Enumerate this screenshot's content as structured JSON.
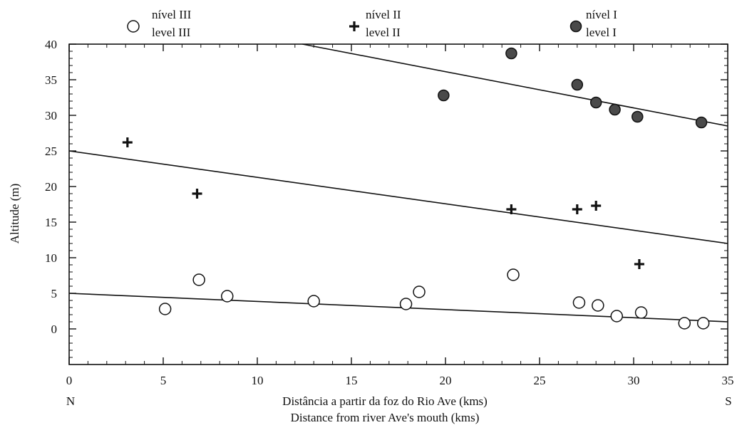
{
  "chart_data": {
    "type": "scatter",
    "title": "",
    "xlabel": "Distância a partir da foz do Rio Ave (kms)",
    "xlabel_secondary": "Distance from river Ave's mouth (kms)",
    "ylabel": "Altitude (m)",
    "xlim": [
      0,
      35
    ],
    "ylim": [
      -5,
      40
    ],
    "x_ticks": [
      0,
      5,
      10,
      15,
      20,
      25,
      30,
      35
    ],
    "y_ticks": [
      0,
      5,
      10,
      15,
      20,
      25,
      30,
      35,
      40
    ],
    "x_tick_labels": [
      "0",
      "5",
      "10",
      "15",
      "20",
      "25",
      "30",
      "35"
    ],
    "y_tick_labels": [
      "0",
      "5",
      "10",
      "15",
      "20",
      "25",
      "30",
      "35",
      "40"
    ],
    "direction_labels": {
      "left": "N",
      "right": "S"
    },
    "grid": false,
    "legend_position": "top",
    "series": [
      {
        "name": "nível III",
        "name_secondary": "level III",
        "marker": "open-circle",
        "points": [
          {
            "x": 5.1,
            "y": 2.8
          },
          {
            "x": 6.9,
            "y": 6.9
          },
          {
            "x": 8.4,
            "y": 4.6
          },
          {
            "x": 13.0,
            "y": 3.9
          },
          {
            "x": 17.9,
            "y": 3.5
          },
          {
            "x": 18.6,
            "y": 5.2
          },
          {
            "x": 23.6,
            "y": 7.6
          },
          {
            "x": 27.1,
            "y": 3.7
          },
          {
            "x": 28.1,
            "y": 3.3
          },
          {
            "x": 29.1,
            "y": 1.8
          },
          {
            "x": 30.4,
            "y": 2.3
          },
          {
            "x": 32.7,
            "y": 0.8
          },
          {
            "x": 33.7,
            "y": 0.8
          }
        ],
        "trend": {
          "x": [
            0,
            35
          ],
          "y": [
            5.0,
            1.0
          ]
        }
      },
      {
        "name": "nível II",
        "name_secondary": "level II",
        "marker": "plus",
        "points": [
          {
            "x": 3.1,
            "y": 26.2
          },
          {
            "x": 6.8,
            "y": 19.0
          },
          {
            "x": 23.5,
            "y": 16.8
          },
          {
            "x": 27.0,
            "y": 16.8
          },
          {
            "x": 28.0,
            "y": 17.3
          },
          {
            "x": 30.3,
            "y": 9.1
          }
        ],
        "trend": {
          "x": [
            0,
            35
          ],
          "y": [
            25.0,
            12.0
          ]
        }
      },
      {
        "name": "nível I",
        "name_secondary": "level I",
        "marker": "filled-circle",
        "points": [
          {
            "x": 19.9,
            "y": 32.8
          },
          {
            "x": 23.5,
            "y": 38.7
          },
          {
            "x": 27.0,
            "y": 34.3
          },
          {
            "x": 28.0,
            "y": 31.8
          },
          {
            "x": 29.0,
            "y": 30.8
          },
          {
            "x": 30.2,
            "y": 29.8
          },
          {
            "x": 33.6,
            "y": 29.0
          }
        ],
        "trend": {
          "x": [
            12.4,
            35
          ],
          "y": [
            40.0,
            28.5
          ]
        }
      }
    ]
  },
  "colors": {
    "ink": "#111111",
    "background": "#ffffff",
    "filled_marker": "#4a4a4a"
  }
}
